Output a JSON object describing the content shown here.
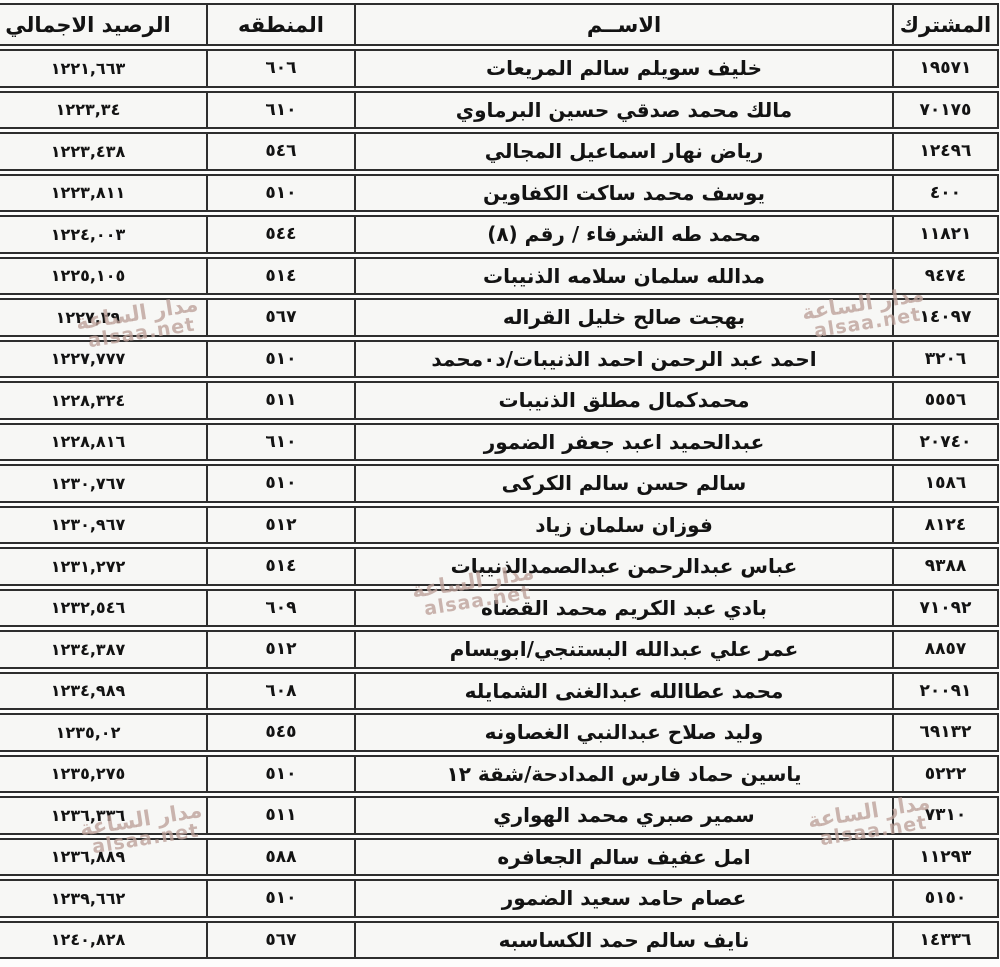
{
  "document": {
    "language": "ar",
    "direction": "rtl",
    "kind": "scanned-subscribers-balance-table"
  },
  "colors": {
    "border": "#2e2e2e",
    "cell_background": "#f7f7f5",
    "text": "#131313",
    "watermark": "rgba(189,160,153,0.78)"
  },
  "watermark": {
    "line1": "مدار الساعة",
    "line2": "alsaa.net"
  },
  "table": {
    "headers": {
      "subscriber": "المشترك",
      "name": "الاســم",
      "region": "المنطقه",
      "balance": "الرصيد الاجمالي"
    },
    "rows": [
      {
        "subscriber": "١٩٥٧١",
        "name": "خليف سويلم سالم المريعات",
        "region": "٦٠٦",
        "balance": "١٢٢١,٦٦٣"
      },
      {
        "subscriber": "٧٠١٧٥",
        "name": "مالك محمد صدقي حسين البرماوي",
        "region": "٦١٠",
        "balance": "١٢٢٣,٣٤"
      },
      {
        "subscriber": "١٢٤٩٦",
        "name": "رياض نهار اسماعيل المجالي",
        "region": "٥٤٦",
        "balance": "١٢٢٣,٤٣٨"
      },
      {
        "subscriber": "٤٠٠",
        "name": "يوسف محمد ساكت الكفاوين",
        "region": "٥١٠",
        "balance": "١٢٢٣,٨١١"
      },
      {
        "subscriber": "١١٨٢١",
        "name": "محمد طه الشرفاء / رقم (٨)",
        "region": "٥٤٤",
        "balance": "١٢٢٤,٠٠٣"
      },
      {
        "subscriber": "٩٤٧٤",
        "name": "مدالله سلمان سلامه الذنيبات",
        "region": "٥١٤",
        "balance": "١٢٢٥,١٠٥"
      },
      {
        "subscriber": "١٤٠٩٧",
        "name": "بهجت صالح خليل القراله",
        "region": "٥٦٧",
        "balance": "١٢٢٧,٢٩"
      },
      {
        "subscriber": "٣٢٠٦",
        "name": "احمد عبد الرحمن احمد الذنيبات/د٠محمد",
        "region": "٥١٠",
        "balance": "١٢٢٧,٧٧٧"
      },
      {
        "subscriber": "٥٥٥٦",
        "name": "محمدكمال مطلق الذنيبات",
        "region": "٥١١",
        "balance": "١٢٢٨,٣٢٤"
      },
      {
        "subscriber": "٢٠٧٤٠",
        "name": "عبدالحميد اعبد جعفر الضمور",
        "region": "٦١٠",
        "balance": "١٢٢٨,٨١٦"
      },
      {
        "subscriber": "١٥٨٦",
        "name": "سالم حسن سالم الكركى",
        "region": "٥١٠",
        "balance": "١٢٣٠,٧٦٧"
      },
      {
        "subscriber": "٨١٢٤",
        "name": "فوزان سلمان زياد",
        "region": "٥١٢",
        "balance": "١٢٣٠,٩٦٧"
      },
      {
        "subscriber": "٩٣٨٨",
        "name": "عباس عبدالرحمن عبدالصمدالذنيبات",
        "region": "٥١٤",
        "balance": "١٢٣١,٢٧٢"
      },
      {
        "subscriber": "٧١٠٩٢",
        "name": "بادي عبد الكريم محمد القضاه",
        "region": "٦٠٩",
        "balance": "١٢٣٢,٥٤٦"
      },
      {
        "subscriber": "٨٨٥٧",
        "name": "عمر علي عبدالله البستنجي/ابويسام",
        "region": "٥١٢",
        "balance": "١٢٣٤,٣٨٧"
      },
      {
        "subscriber": "٢٠٠٩١",
        "name": "محمد عطاالله عبدالغنى الشمايله",
        "region": "٦٠٨",
        "balance": "١٢٣٤,٩٨٩"
      },
      {
        "subscriber": "٦٩١٣٢",
        "name": "وليد صلاح عبدالنبي الغصاونه",
        "region": "٥٤٥",
        "balance": "١٢٣٥,٠٢"
      },
      {
        "subscriber": "٥٢٢٢",
        "name": "ياسين حماد فارس المدادحة/شقة ١٢",
        "region": "٥١٠",
        "balance": "١٢٣٥,٢٧٥"
      },
      {
        "subscriber": "٧٣١٠",
        "name": "سمير صبري محمد الهواري",
        "region": "٥١١",
        "balance": "١٢٣٦,٣٣٦"
      },
      {
        "subscriber": "١١٢٩٣",
        "name": "امل عفيف سالم الجعافره",
        "region": "٥٨٨",
        "balance": "١٢٣٦,٨٨٩"
      },
      {
        "subscriber": "٥١٥٠",
        "name": "عصام حامد سعيد الضمور",
        "region": "٥١٠",
        "balance": "١٢٣٩,٦٦٢"
      },
      {
        "subscriber": "١٤٣٣٦",
        "name": "نايف سالم حمد الكساسبه",
        "region": "٥٦٧",
        "balance": "١٢٤٠,٨٢٨"
      }
    ]
  }
}
